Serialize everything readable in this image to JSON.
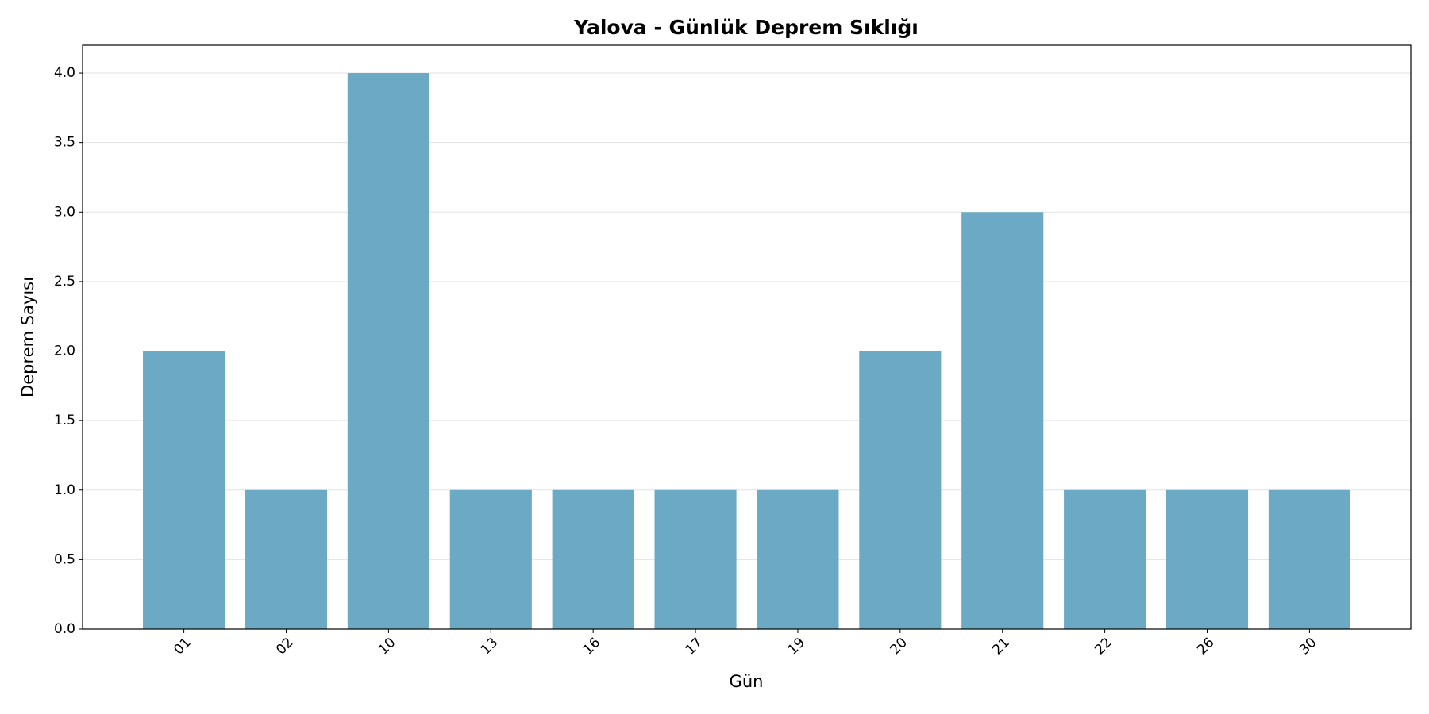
{
  "chart_data": {
    "type": "bar",
    "title": "Yalova - Günlük Deprem Sıklığı",
    "x_label": "Gün",
    "y_label": "Deprem Sayısı",
    "categories": [
      "01",
      "02",
      "10",
      "13",
      "16",
      "17",
      "19",
      "20",
      "21",
      "22",
      "26",
      "30"
    ],
    "values": [
      2,
      1,
      4,
      1,
      1,
      1,
      1,
      2,
      3,
      1,
      1,
      1
    ],
    "color": "#6ba9c4",
    "ylim": [
      0,
      4.2
    ],
    "yticks": [
      {
        "value": 0,
        "label": "0.0"
      },
      0.5,
      {
        "value": 1,
        "label": "1.0"
      },
      1.5,
      {
        "value": 2,
        "label": "2.0"
      },
      2.5,
      {
        "value": 3,
        "label": "3.0"
      },
      3.5,
      {
        "value": 4,
        "label": "4.0"
      }
    ],
    "grid": true
  }
}
